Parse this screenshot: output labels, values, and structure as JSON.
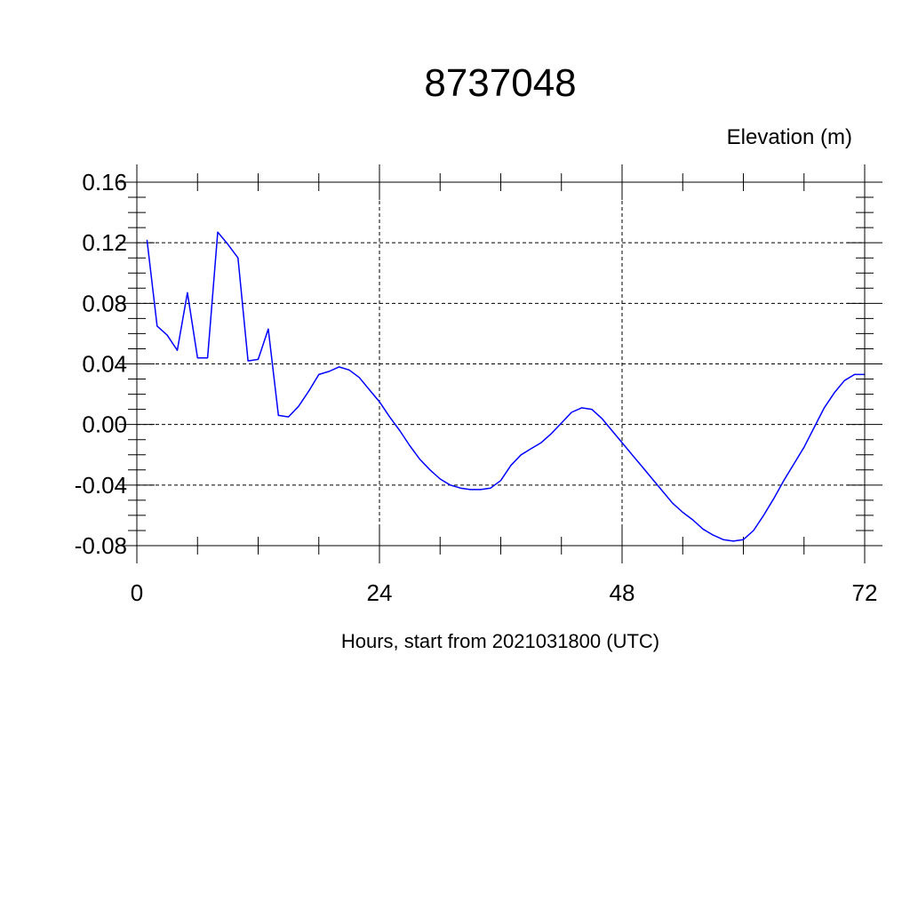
{
  "chart_data": {
    "type": "line",
    "title": "8737048",
    "units_label": "Elevation (m)",
    "xlabel": "Hours, start from 2021031800 (UTC)",
    "ylabel": "",
    "xlim": [
      0,
      72
    ],
    "ylim": [
      -0.08,
      0.16
    ],
    "x_ticks": [
      0,
      24,
      48,
      72
    ],
    "x_tick_labels": [
      "0",
      "24",
      "48",
      "72"
    ],
    "y_ticks": [
      -0.08,
      -0.04,
      0.0,
      0.04,
      0.08,
      0.12,
      0.16
    ],
    "y_tick_labels": [
      "-0.08",
      "-0.04",
      "0.00",
      "0.04",
      "0.08",
      "0.12",
      "0.16"
    ],
    "grid": true,
    "line_color": "#0000ff",
    "series": [
      {
        "x": [
          1,
          2,
          3,
          4,
          5,
          6,
          7,
          8,
          9,
          10,
          11,
          12,
          13,
          14,
          15,
          16,
          17,
          18,
          19,
          20,
          21,
          22,
          23,
          24,
          25,
          26,
          27,
          28,
          29,
          30,
          31,
          32,
          33,
          34,
          35,
          36,
          37,
          38,
          39,
          40,
          41,
          42,
          43,
          44,
          45,
          46,
          47,
          48,
          49,
          50,
          51,
          52,
          53,
          54,
          55,
          56,
          57,
          58,
          59,
          60,
          61,
          62,
          63,
          64,
          65,
          66,
          67,
          68,
          69,
          70,
          71,
          72
        ],
        "values": [
          0.122,
          0.065,
          0.059,
          0.049,
          0.087,
          0.044,
          0.044,
          0.127,
          0.119,
          0.11,
          0.042,
          0.043,
          0.063,
          0.006,
          0.005,
          0.012,
          0.022,
          0.033,
          0.035,
          0.038,
          0.036,
          0.031,
          0.023,
          0.015,
          0.005,
          -0.004,
          -0.014,
          -0.023,
          -0.03,
          -0.036,
          -0.04,
          -0.042,
          -0.043,
          -0.043,
          -0.042,
          -0.037,
          -0.027,
          -0.02,
          -0.016,
          -0.012,
          -0.006,
          0.001,
          0.008,
          0.011,
          0.01,
          0.004,
          -0.004,
          -0.012,
          -0.02,
          -0.028,
          -0.036,
          -0.044,
          -0.052,
          -0.058,
          -0.063,
          -0.069,
          -0.073,
          -0.076,
          -0.077,
          -0.076,
          -0.07,
          -0.06,
          -0.049,
          -0.037,
          -0.026,
          -0.015,
          -0.002,
          0.011,
          0.021,
          0.029,
          0.033,
          0.033
        ]
      }
    ]
  }
}
